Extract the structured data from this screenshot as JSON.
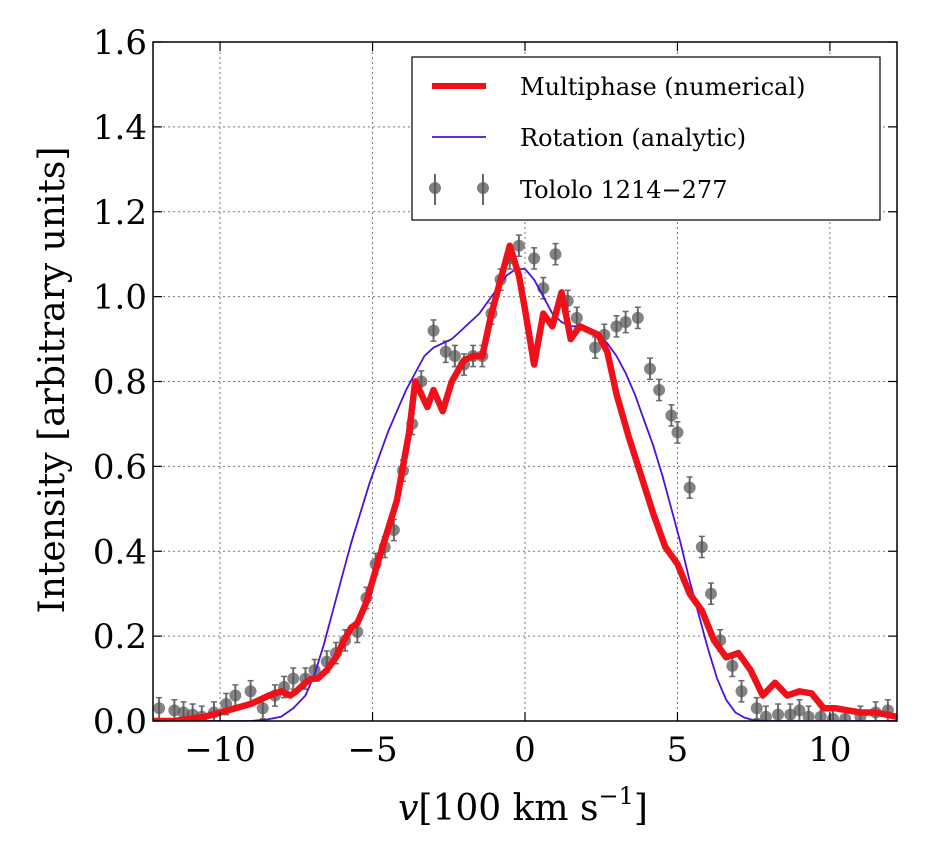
{
  "chart_data": {
    "type": "line",
    "xlabel_main": "v",
    "xlabel_units": "[100 km s",
    "xlabel_exp": "−1",
    "xlabel_close": "]",
    "ylabel": "Intensity [arbitrary units]",
    "xlim": [
      -12.2,
      12.2
    ],
    "ylim": [
      0.0,
      1.6
    ],
    "grid": true,
    "legend_position": "top-right",
    "x_ticks": [
      -10,
      -5,
      0,
      5,
      10
    ],
    "x_tick_labels": [
      "−10",
      "−5",
      "0",
      "5",
      "10"
    ],
    "y_ticks": [
      0.0,
      0.2,
      0.4,
      0.6,
      0.8,
      1.0,
      1.2,
      1.4,
      1.6
    ],
    "y_tick_labels": [
      "0.0",
      "0.2",
      "0.4",
      "0.6",
      "0.8",
      "1.0",
      "1.2",
      "1.4",
      "1.6"
    ],
    "legend": [
      {
        "label": "Multiphase (numerical)",
        "style": "thick-line",
        "color": "#f0101a"
      },
      {
        "label": "Rotation (analytic)",
        "style": "thin-line",
        "color": "#4b10e0"
      },
      {
        "label": "Tololo 1214−277",
        "style": "errorbar-marker",
        "color": "#555555"
      }
    ],
    "series": [
      {
        "name": "Multiphase (numerical)",
        "color": "#f0101a",
        "x": [
          -12.2,
          -11.5,
          -11.0,
          -10.5,
          -10.0,
          -9.5,
          -9.0,
          -8.7,
          -8.4,
          -8.0,
          -7.7,
          -7.5,
          -7.2,
          -7.0,
          -6.8,
          -6.5,
          -6.2,
          -6.0,
          -5.7,
          -5.5,
          -5.2,
          -5.0,
          -4.8,
          -4.5,
          -4.2,
          -4.0,
          -3.8,
          -3.6,
          -3.4,
          -3.2,
          -3.0,
          -2.7,
          -2.4,
          -2.0,
          -1.7,
          -1.4,
          -1.1,
          -0.8,
          -0.5,
          -0.2,
          0.0,
          0.3,
          0.6,
          0.9,
          1.2,
          1.5,
          1.8,
          2.1,
          2.4,
          2.7,
          3.0,
          3.4,
          3.8,
          4.2,
          4.6,
          5.0,
          5.4,
          5.8,
          6.2,
          6.6,
          7.0,
          7.4,
          7.8,
          8.2,
          8.6,
          9.0,
          9.4,
          9.8,
          10.2,
          10.6,
          11.0,
          11.5,
          12.2
        ],
        "y": [
          0.0,
          0.0,
          0.005,
          0.01,
          0.02,
          0.03,
          0.04,
          0.05,
          0.06,
          0.07,
          0.06,
          0.07,
          0.09,
          0.1,
          0.1,
          0.12,
          0.15,
          0.18,
          0.22,
          0.23,
          0.28,
          0.33,
          0.38,
          0.45,
          0.52,
          0.6,
          0.68,
          0.8,
          0.77,
          0.74,
          0.78,
          0.73,
          0.8,
          0.85,
          0.86,
          0.86,
          0.96,
          1.04,
          1.12,
          1.05,
          0.97,
          0.84,
          0.96,
          0.93,
          1.01,
          0.9,
          0.93,
          0.92,
          0.91,
          0.87,
          0.77,
          0.67,
          0.58,
          0.49,
          0.41,
          0.37,
          0.3,
          0.26,
          0.19,
          0.15,
          0.16,
          0.12,
          0.06,
          0.09,
          0.06,
          0.07,
          0.065,
          0.03,
          0.03,
          0.025,
          0.02,
          0.02,
          0.01
        ]
      },
      {
        "name": "Rotation (analytic)",
        "color": "#4b10e0",
        "x": [
          -12.2,
          -9.0,
          -8.5,
          -8.0,
          -7.6,
          -7.2,
          -6.9,
          -6.6,
          -6.3,
          -6.0,
          -5.7,
          -5.4,
          -5.1,
          -4.8,
          -4.5,
          -4.2,
          -3.9,
          -3.6,
          -3.3,
          -3.0,
          -2.7,
          -2.4,
          -2.1,
          -1.8,
          -1.5,
          -1.2,
          -0.9,
          -0.6,
          -0.3,
          0.0,
          0.3,
          0.6,
          0.9,
          1.2,
          1.5,
          1.8,
          2.1,
          2.4,
          2.7,
          3.0,
          3.3,
          3.6,
          3.9,
          4.2,
          4.5,
          4.8,
          5.1,
          5.4,
          5.7,
          6.0,
          6.3,
          6.6,
          6.9,
          7.2,
          7.5,
          8.0,
          8.5,
          9.0,
          12.2
        ],
        "y": [
          0.0,
          0.0,
          0.003,
          0.01,
          0.03,
          0.06,
          0.11,
          0.18,
          0.26,
          0.34,
          0.42,
          0.49,
          0.56,
          0.62,
          0.68,
          0.73,
          0.78,
          0.82,
          0.86,
          0.88,
          0.89,
          0.9,
          0.92,
          0.94,
          0.96,
          0.99,
          1.02,
          1.05,
          1.065,
          1.065,
          1.04,
          1.0,
          0.96,
          0.94,
          0.93,
          0.93,
          0.92,
          0.91,
          0.89,
          0.86,
          0.82,
          0.77,
          0.71,
          0.65,
          0.58,
          0.5,
          0.42,
          0.33,
          0.25,
          0.17,
          0.1,
          0.05,
          0.02,
          0.008,
          0.002,
          0.0,
          0.0,
          0.0,
          0.0
        ]
      },
      {
        "name": "Tololo 1214−277",
        "color": "#555555",
        "marker": "circle",
        "x": [
          -12.0,
          -11.5,
          -11.2,
          -10.9,
          -10.6,
          -10.2,
          -9.8,
          -9.5,
          -9.0,
          -8.6,
          -8.2,
          -7.9,
          -7.6,
          -7.2,
          -6.9,
          -6.5,
          -6.2,
          -5.9,
          -5.5,
          -5.2,
          -4.9,
          -4.6,
          -4.3,
          -4.0,
          -3.7,
          -3.4,
          -3.0,
          -2.6,
          -2.3,
          -2.0,
          -1.7,
          -1.4,
          -1.1,
          -0.8,
          -0.5,
          -0.2,
          0.3,
          0.6,
          1.0,
          1.4,
          1.7,
          2.3,
          2.6,
          3.0,
          3.3,
          3.7,
          4.1,
          4.4,
          4.8,
          5.0,
          5.4,
          5.8,
          6.1,
          6.4,
          6.8,
          7.1,
          7.6,
          7.9,
          8.3,
          8.7,
          9.0,
          9.3,
          9.7,
          10.1,
          10.5,
          11.0,
          11.5,
          11.9
        ],
        "y": [
          0.03,
          0.025,
          0.02,
          0.015,
          0.01,
          0.02,
          0.04,
          0.06,
          0.07,
          0.03,
          0.06,
          0.08,
          0.1,
          0.1,
          0.12,
          0.14,
          0.16,
          0.19,
          0.21,
          0.29,
          0.37,
          0.41,
          0.45,
          0.59,
          0.7,
          0.8,
          0.92,
          0.87,
          0.86,
          0.84,
          0.86,
          0.86,
          0.96,
          1.04,
          1.09,
          1.12,
          1.09,
          1.02,
          1.1,
          0.99,
          0.95,
          0.88,
          0.91,
          0.93,
          0.94,
          0.95,
          0.83,
          0.78,
          0.72,
          0.68,
          0.55,
          0.41,
          0.3,
          0.19,
          0.13,
          0.07,
          0.03,
          0.01,
          0.015,
          0.015,
          0.025,
          0.01,
          0.01,
          0.005,
          0.005,
          0.01,
          0.02,
          0.025
        ],
        "yerr": 0.025
      }
    ]
  }
}
